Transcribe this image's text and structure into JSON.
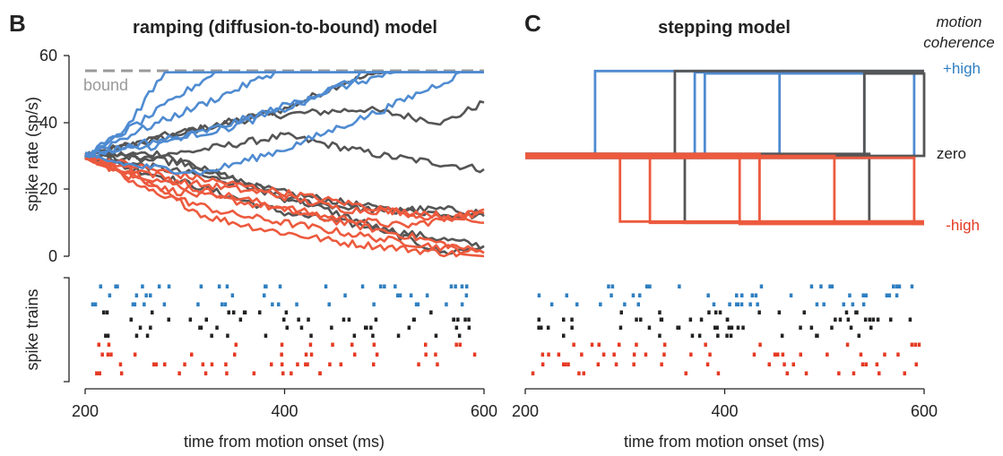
{
  "colors": {
    "high_pos": "#4f8bd1",
    "zero": "#555555",
    "high_neg": "#ec5a3e",
    "raster_pos": "#2f7fc1",
    "raster_zero": "#222222",
    "raster_neg": "#e53a23",
    "bound": "#9a9a9a"
  },
  "panel_b": {
    "letter": "B",
    "title": "ramping (diffusion-to-bound) model",
    "ylabel": "spike rate (sp/s)",
    "raster_label": "spike trains",
    "bound_label": "bound",
    "xlabel": "time from motion onset (ms)",
    "yticks": [
      "0",
      "20",
      "40",
      "60"
    ],
    "xticks": [
      "200",
      "400",
      "600"
    ]
  },
  "panel_c": {
    "letter": "C",
    "title": "stepping model",
    "xlabel": "time from motion onset (ms)",
    "xticks": [
      "200",
      "400",
      "600"
    ],
    "legend": {
      "title_line1": "motion",
      "title_line2": "coherence",
      "pos": "+high",
      "zero": "zero",
      "neg": "-high"
    }
  },
  "chart_data": [
    {
      "type": "line",
      "title": "ramping (diffusion-to-bound) model",
      "xlabel": "time from motion onset (ms)",
      "ylabel": "spike rate (sp/s)",
      "xlim": [
        200,
        600
      ],
      "ylim": [
        0,
        60
      ],
      "bound": 55,
      "series": [
        {
          "name": "+high",
          "points": [
            [
              200,
              30
            ],
            [
              240,
              38
            ],
            [
              280,
              55
            ],
            [
              600,
              55
            ]
          ]
        },
        {
          "name": "+high",
          "points": [
            [
              200,
              30
            ],
            [
              260,
              41
            ],
            [
              330,
              55
            ],
            [
              600,
              55
            ]
          ]
        },
        {
          "name": "+high",
          "points": [
            [
              200,
              30
            ],
            [
              250,
              37
            ],
            [
              330,
              47
            ],
            [
              390,
              55
            ],
            [
              600,
              55
            ]
          ]
        },
        {
          "name": "+high",
          "points": [
            [
              200,
              30
            ],
            [
              270,
              33
            ],
            [
              350,
              40
            ],
            [
              450,
              50
            ],
            [
              510,
              55
            ],
            [
              600,
              55
            ]
          ]
        },
        {
          "name": "+high",
          "points": [
            [
              200,
              30
            ],
            [
              250,
              27
            ],
            [
              320,
              25
            ],
            [
              400,
              32
            ],
            [
              500,
              44
            ],
            [
              580,
              55
            ],
            [
              600,
              55
            ]
          ]
        },
        {
          "name": "+high",
          "points": [
            [
              200,
              30
            ],
            [
              260,
              34
            ],
            [
              340,
              38
            ],
            [
              420,
              46
            ],
            [
              480,
              55
            ],
            [
              600,
              55
            ]
          ]
        },
        {
          "name": "zero",
          "points": [
            [
              200,
              30
            ],
            [
              300,
              37
            ],
            [
              400,
              44
            ],
            [
              460,
              52
            ],
            [
              500,
              55
            ],
            [
              600,
              55
            ]
          ]
        },
        {
          "name": "zero",
          "points": [
            [
              200,
              30
            ],
            [
              280,
              36
            ],
            [
              380,
              42
            ],
            [
              480,
              44
            ],
            [
              560,
              40
            ],
            [
              600,
              46
            ]
          ]
        },
        {
          "name": "zero",
          "points": [
            [
              200,
              30
            ],
            [
              300,
              31
            ],
            [
              400,
              36
            ],
            [
              500,
              30
            ],
            [
              600,
              26
            ]
          ]
        },
        {
          "name": "zero",
          "points": [
            [
              200,
              30
            ],
            [
              300,
              25
            ],
            [
              400,
              19
            ],
            [
              500,
              14
            ],
            [
              600,
              12
            ]
          ]
        },
        {
          "name": "zero",
          "points": [
            [
              200,
              30
            ],
            [
              300,
              22
            ],
            [
              400,
              13
            ],
            [
              500,
              8
            ],
            [
              600,
              3
            ]
          ]
        },
        {
          "name": "zero",
          "points": [
            [
              200,
              30
            ],
            [
              280,
              30
            ],
            [
              380,
              20
            ],
            [
              480,
              10
            ],
            [
              560,
              1
            ],
            [
              600,
              3
            ]
          ]
        },
        {
          "name": "zero",
          "points": [
            [
              200,
              30
            ],
            [
              300,
              28
            ],
            [
              400,
              17
            ],
            [
              480,
              14
            ],
            [
              560,
              14
            ],
            [
              600,
              13
            ]
          ]
        },
        {
          "name": "-high",
          "points": [
            [
              200,
              30
            ],
            [
              260,
              22
            ],
            [
              320,
              12
            ],
            [
              380,
              8
            ],
            [
              460,
              4
            ],
            [
              560,
              1
            ],
            [
              600,
              0
            ]
          ]
        },
        {
          "name": "-high",
          "points": [
            [
              200,
              30
            ],
            [
              280,
              22
            ],
            [
              360,
              17
            ],
            [
              440,
              12
            ],
            [
              520,
              9
            ],
            [
              600,
              13
            ]
          ]
        },
        {
          "name": "-high",
          "points": [
            [
              200,
              30
            ],
            [
              280,
              20
            ],
            [
              380,
              15
            ],
            [
              460,
              10
            ],
            [
              540,
              5
            ],
            [
              600,
              1
            ]
          ]
        },
        {
          "name": "-high",
          "points": [
            [
              200,
              30
            ],
            [
              300,
              24
            ],
            [
              380,
              20
            ],
            [
              460,
              16
            ],
            [
              560,
              11
            ],
            [
              600,
              14
            ]
          ]
        },
        {
          "name": "-high",
          "points": [
            [
              200,
              30
            ],
            [
              260,
              20
            ],
            [
              340,
              13
            ],
            [
              420,
              9
            ],
            [
              500,
              5
            ],
            [
              600,
              1
            ]
          ]
        },
        {
          "name": "-high",
          "points": [
            [
              200,
              30
            ],
            [
              300,
              22
            ],
            [
              380,
              19
            ],
            [
              460,
              14
            ],
            [
              540,
              13
            ],
            [
              600,
              10
            ]
          ]
        }
      ]
    },
    {
      "type": "line",
      "title": "stepping model",
      "xlabel": "time from motion onset (ms)",
      "xlim": [
        200,
        600
      ],
      "levels": {
        "up": 55,
        "start": 30,
        "down": 10
      },
      "series": [
        {
          "name": "+high",
          "step_times": [
            270,
            370,
            380,
            455,
            540,
            590
          ]
        },
        {
          "name": "zero",
          "step_times": [
            350,
            360,
            540,
            545,
            600
          ]
        },
        {
          "name": "-high",
          "step_times": [
            295,
            325,
            415,
            435,
            510,
            590
          ]
        }
      ]
    }
  ]
}
